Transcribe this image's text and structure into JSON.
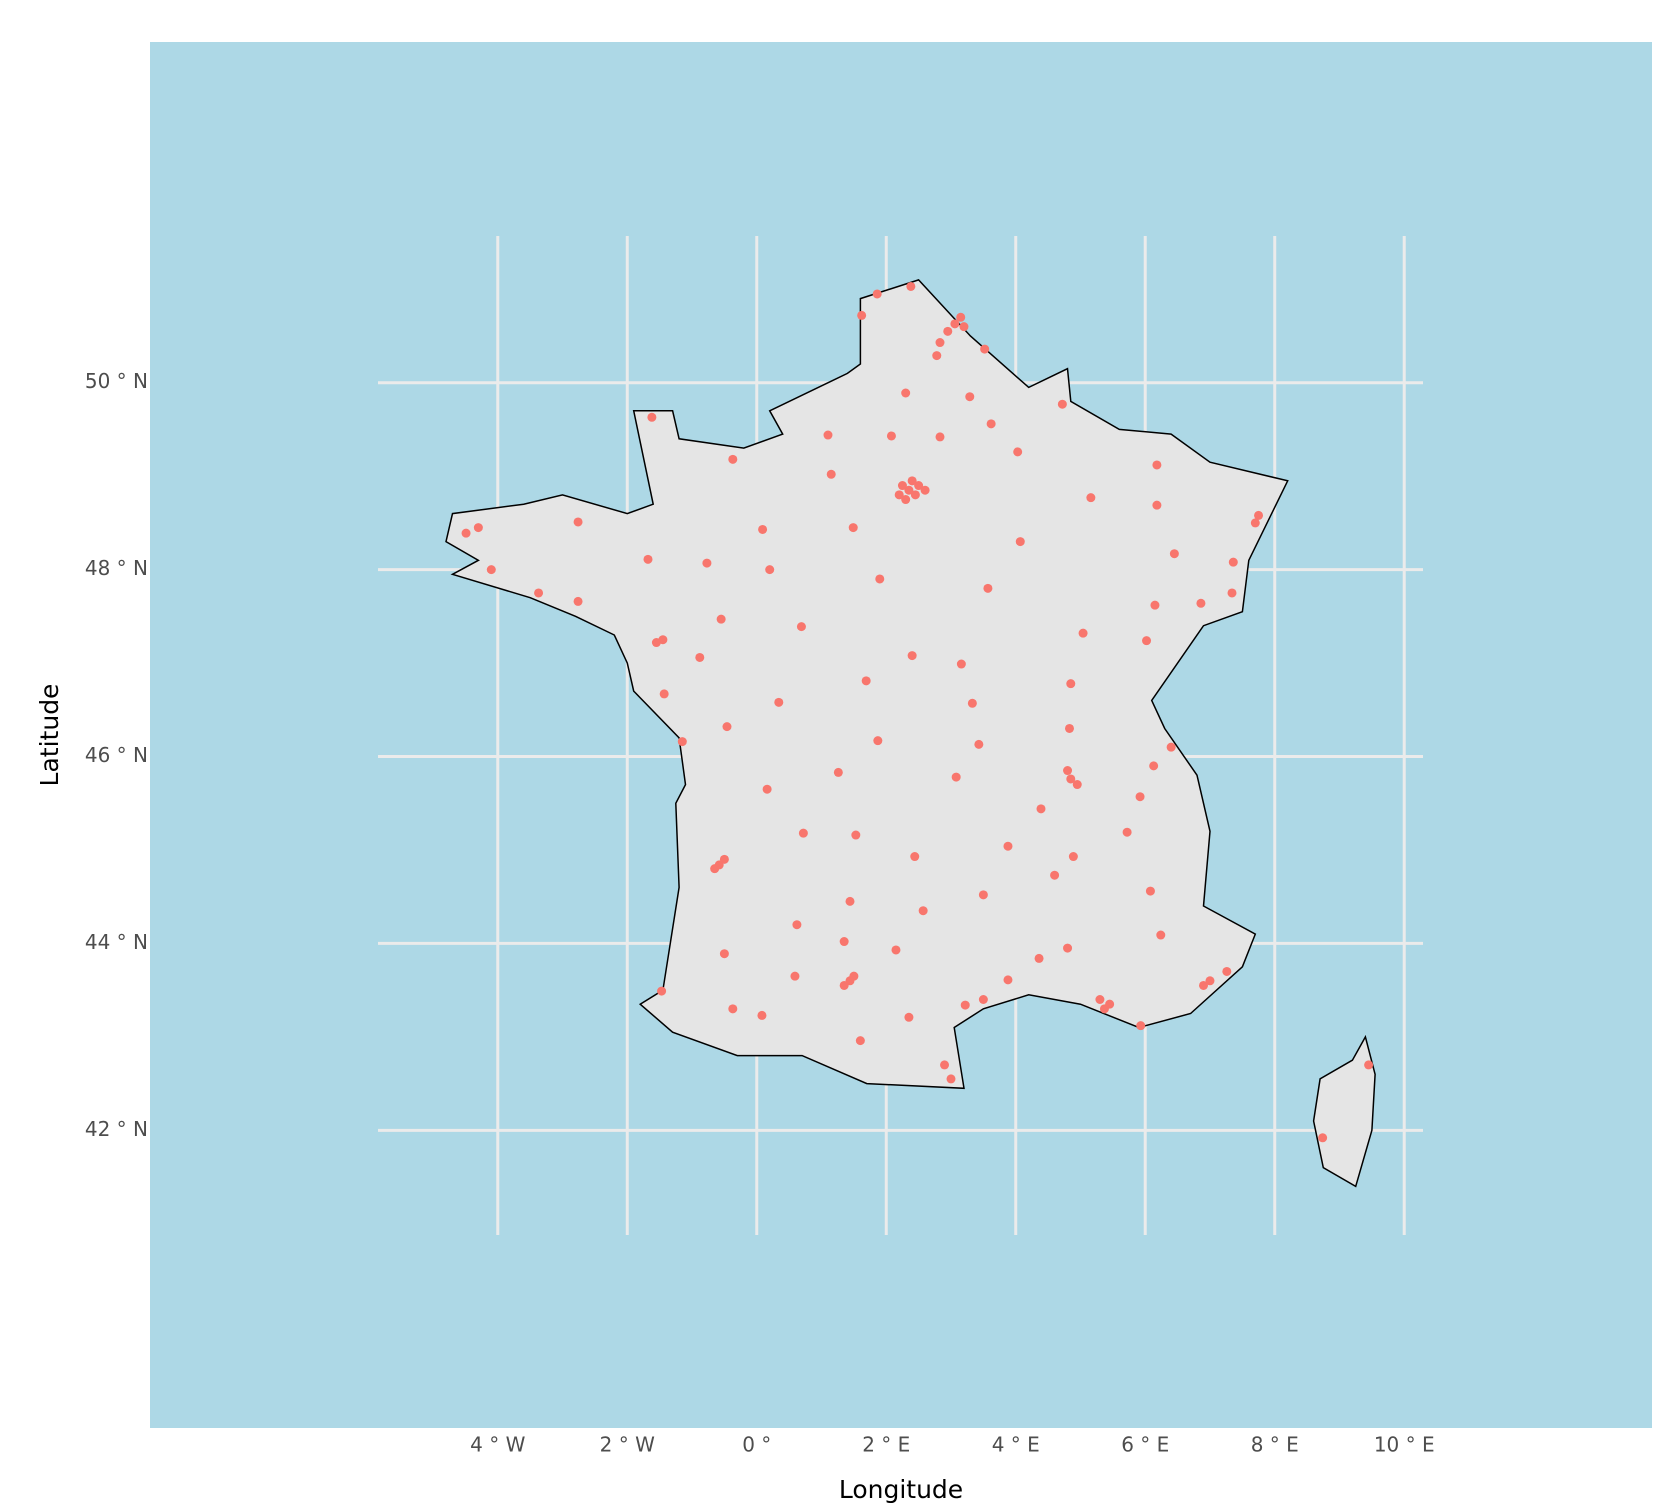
{
  "chart_data": {
    "type": "scatter",
    "x_label": "Longitude",
    "y_label": "Latitude",
    "xlim": [
      -5.85,
      10.29
    ],
    "ylim": [
      40.88,
      51.57
    ],
    "xticks": [
      {
        "value": -4,
        "label": "4 ° W"
      },
      {
        "value": -2,
        "label": "2 ° W"
      },
      {
        "value": 0,
        "label": "0 °"
      },
      {
        "value": 2,
        "label": "2 ° E"
      },
      {
        "value": 4,
        "label": "4 ° E"
      },
      {
        "value": 6,
        "label": "6 ° E"
      },
      {
        "value": 8,
        "label": "8 ° E"
      },
      {
        "value": 10,
        "label": "10 ° E"
      }
    ],
    "yticks": [
      {
        "value": 42,
        "label": "42 ° N"
      },
      {
        "value": 44,
        "label": "44 ° N"
      },
      {
        "value": 46,
        "label": "46 ° N"
      },
      {
        "value": 48,
        "label": "48 ° N"
      },
      {
        "value": 50,
        "label": "50 ° N"
      }
    ],
    "grid": true,
    "color": "#F8766D",
    "x": [
      2.35,
      2.25,
      2.45,
      2.3,
      2.5,
      2.4,
      2.2,
      2.6,
      3.06,
      3.15,
      2.95,
      3.2,
      4.85,
      4.95,
      4.8,
      5.37,
      5.45,
      5.3,
      1.44,
      1.35,
      1.5,
      -0.58,
      -0.65,
      -0.5,
      -1.55,
      -1.45,
      7.75,
      7.7,
      7.26,
      7.0,
      6.9,
      3.88,
      3.5,
      2.9,
      3.0,
      -1.68,
      -4.49,
      -4.3,
      5.72,
      6.13,
      6.4,
      3.08,
      5.04,
      4.03,
      6.18,
      6.18,
      1.1,
      -0.37,
      0.2,
      0.69,
      1.9,
      1.26,
      0.34,
      -1.15,
      -0.55,
      6.02,
      7.34,
      2.3,
      4.07,
      2.4,
      -0.37,
      -1.47,
      4.8,
      4.36,
      5.93,
      8.74,
      9.45,
      4.39,
      1.53,
      0.72,
      0.62,
      2.15,
      2.57,
      2.44,
      3.88,
      4.89,
      5.92,
      4.83,
      4.85,
      3.16,
      3.57,
      1.49,
      1.15,
      2.08,
      2.83,
      3.29,
      3.62,
      1.86,
      1.62,
      -1.62,
      -2.76,
      -3.37,
      -4.1,
      -2.76,
      -0.46,
      0.16,
      -0.5,
      0.08,
      2.35,
      3.22,
      6.08,
      6.24,
      6.45,
      7.36,
      6.86,
      6.15,
      1.69,
      1.87,
      3.43,
      3.33,
      -0.77,
      0.09,
      -0.88,
      -1.43,
      5.16,
      4.72,
      1.44,
      1.35,
      0.59,
      1.6,
      3.5,
      4.6,
      2.83,
      3.52,
      2.38,
      2.78
    ],
    "values": [
      48.85,
      48.9,
      48.8,
      48.75,
      48.9,
      48.95,
      48.8,
      48.85,
      50.63,
      50.7,
      50.55,
      50.6,
      45.76,
      45.7,
      45.85,
      43.3,
      43.35,
      43.4,
      43.6,
      43.55,
      43.65,
      44.84,
      44.8,
      44.9,
      47.22,
      47.25,
      48.58,
      48.5,
      43.7,
      43.6,
      43.55,
      43.61,
      43.4,
      42.7,
      42.55,
      48.11,
      48.39,
      48.45,
      45.19,
      45.9,
      46.1,
      45.78,
      47.32,
      49.26,
      49.12,
      48.69,
      49.44,
      49.18,
      48.0,
      47.39,
      47.9,
      45.83,
      46.58,
      46.16,
      47.47,
      47.24,
      47.75,
      49.89,
      48.3,
      47.08,
      43.3,
      43.49,
      43.95,
      43.84,
      43.12,
      41.92,
      42.7,
      45.44,
      45.16,
      45.18,
      44.2,
      43.93,
      44.35,
      44.93,
      45.04,
      44.93,
      45.57,
      46.3,
      46.78,
      46.99,
      47.8,
      48.45,
      49.02,
      49.43,
      49.42,
      49.85,
      49.56,
      50.95,
      50.72,
      49.63,
      48.51,
      47.75,
      48.0,
      47.66,
      46.32,
      45.65,
      43.89,
      43.23,
      43.21,
      43.34,
      44.56,
      44.09,
      48.17,
      48.08,
      47.64,
      47.62,
      46.81,
      46.17,
      46.13,
      46.57,
      48.07,
      48.43,
      47.06,
      46.67,
      48.77,
      49.77,
      44.45,
      44.02,
      43.65,
      42.96,
      44.52,
      44.73,
      50.43,
      50.36,
      51.03,
      50.29
    ]
  }
}
